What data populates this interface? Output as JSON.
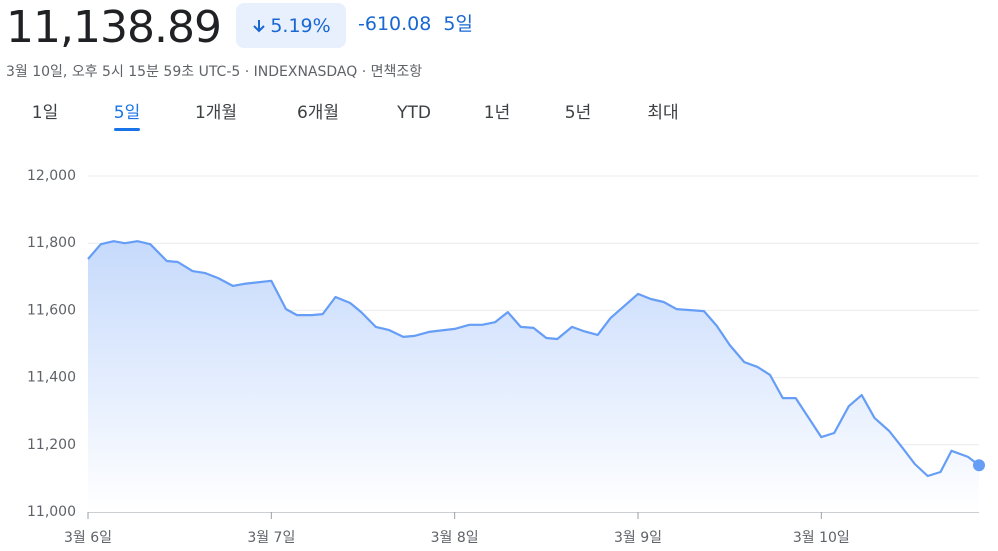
{
  "header": {
    "price": "11,138.89",
    "change_percent": "5.19%",
    "change_value": "-610.08",
    "period": "5일",
    "subtitle": "3월 10일, 오후 5시 15분 59초 UTC-5 · INDEXNASDAQ · 면책조항"
  },
  "tabs": {
    "items": [
      "1일",
      "5일",
      "1개월",
      "6개월",
      "YTD",
      "1년",
      "5년",
      "최대"
    ],
    "active": 1
  },
  "chart_data": {
    "type": "area",
    "color": "#669df6",
    "grid": true,
    "x": [
      0,
      0.07,
      0.14,
      0.2,
      0.27,
      0.34,
      0.43,
      0.49,
      0.57,
      0.64,
      0.71,
      0.79,
      0.85,
      1,
      1.08,
      1.14,
      1.22,
      1.28,
      1.35,
      1.43,
      1.49,
      1.57,
      1.64,
      1.72,
      1.78,
      1.86,
      2,
      2.08,
      2.15,
      2.22,
      2.29,
      2.36,
      2.43,
      2.5,
      2.56,
      2.64,
      2.7,
      2.78,
      2.85,
      3,
      3.07,
      3.14,
      3.21,
      3.36,
      3.43,
      3.5,
      3.58,
      3.65,
      3.72,
      3.79,
      3.86,
      4,
      4.07,
      4.15,
      4.22,
      4.29,
      4.37,
      4.44,
      4.51,
      4.58,
      4.65,
      4.71,
      4.8,
      4.86
    ],
    "values": [
      11753,
      11797,
      11806,
      11800,
      11806,
      11797,
      11747,
      11744,
      11717,
      11711,
      11696,
      11673,
      11679,
      11688,
      11604,
      11586,
      11586,
      11589,
      11640,
      11622,
      11595,
      11551,
      11542,
      11521,
      11524,
      11536,
      11545,
      11557,
      11557,
      11565,
      11595,
      11551,
      11548,
      11518,
      11515,
      11551,
      11539,
      11527,
      11577,
      11649,
      11634,
      11625,
      11604,
      11598,
      11554,
      11497,
      11446,
      11432,
      11408,
      11339,
      11339,
      11223,
      11235,
      11315,
      11348,
      11280,
      11241,
      11193,
      11143,
      11107,
      11119,
      11182,
      11164,
      11139
    ],
    "xlim": [
      0,
      4.86
    ],
    "xticks": [
      {
        "value": 0,
        "label": "3월 6일"
      },
      {
        "value": 1,
        "label": "3월 7일"
      },
      {
        "value": 2,
        "label": "3월 8일"
      },
      {
        "value": 3,
        "label": "3월 9일"
      },
      {
        "value": 4,
        "label": "3월 10일"
      }
    ],
    "ylim": [
      11000,
      12000
    ],
    "yticks": [
      {
        "value": 11000,
        "label": "11,000"
      },
      {
        "value": 11200,
        "label": "11,200"
      },
      {
        "value": 11400,
        "label": "11,400"
      },
      {
        "value": 11600,
        "label": "11,600"
      },
      {
        "value": 11800,
        "label": "11,800"
      },
      {
        "value": 12000,
        "label": "12,000"
      }
    ]
  }
}
